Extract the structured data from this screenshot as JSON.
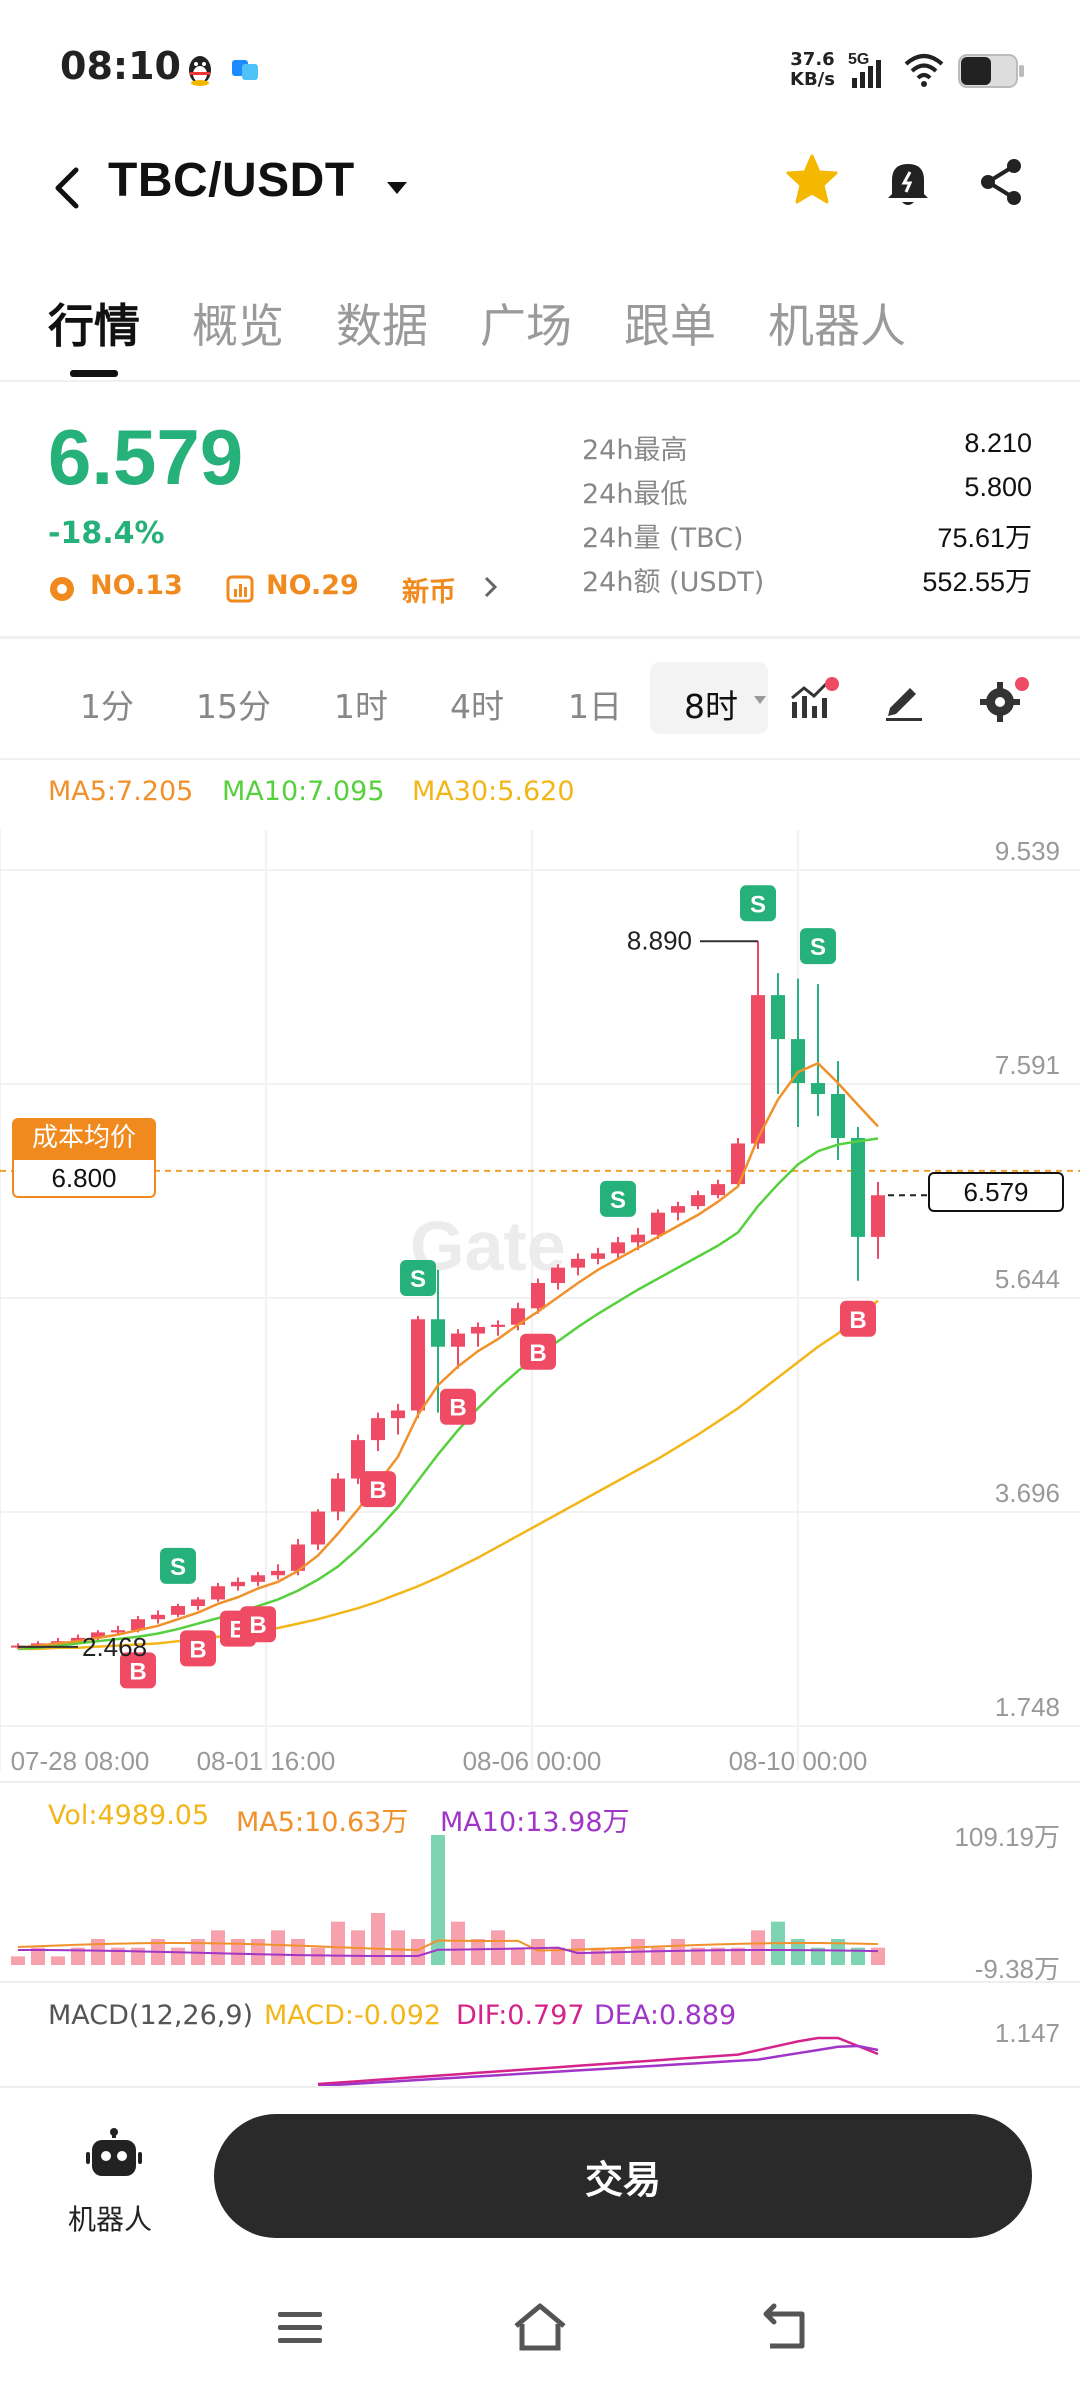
{
  "status_bar": {
    "time": "08:10",
    "net_speed_value": "37.6",
    "net_speed_unit": "KB/s",
    "network": "5G"
  },
  "header": {
    "pair": "TBC/USDT",
    "favorite_color": "#f5b800"
  },
  "tabs": [
    {
      "label": "行情",
      "active": true
    },
    {
      "label": "概览"
    },
    {
      "label": "数据"
    },
    {
      "label": "广场"
    },
    {
      "label": "跟单"
    },
    {
      "label": "机器人"
    }
  ],
  "ticker": {
    "price": "6.579",
    "change": "-18.4%",
    "rank1": "NO.13",
    "rank2": "NO.29",
    "tag": "新币",
    "stats": [
      {
        "label": "24h最高",
        "value": "8.210"
      },
      {
        "label": "24h最低",
        "value": "5.800"
      },
      {
        "label": "24h量 (TBC)",
        "value": "75.61万"
      },
      {
        "label": "24h额 (USDT)",
        "value": "552.55万"
      }
    ]
  },
  "intervals": [
    {
      "label": "1分"
    },
    {
      "label": "15分"
    },
    {
      "label": "1时"
    },
    {
      "label": "4时"
    },
    {
      "label": "1日"
    },
    {
      "label": "8时",
      "active": true
    }
  ],
  "ma_legend": {
    "ma5": "MA5:7.205",
    "ma10": "MA10:7.095",
    "ma30": "MA30:5.620"
  },
  "colors": {
    "up": "#f04b64",
    "down": "#26b07a",
    "ma5": "#f0912b",
    "ma10": "#56d13d",
    "ma30": "#f2b619",
    "macd_dif": "#d4238a",
    "macd_dea": "#a035c8"
  },
  "cost_avg": {
    "label": "成本均价",
    "value": "6.800"
  },
  "chart_data": {
    "type": "candlestick",
    "y_ticks": [
      "9.539",
      "7.591",
      "5.644",
      "3.696",
      "1.748"
    ],
    "x_ticks": [
      "07-28 08:00",
      "08-01 16:00",
      "08-06 00:00",
      "08-10 00:00"
    ],
    "ylim": [
      1.748,
      9.539
    ],
    "high_marker": "8.890",
    "low_marker": "2.468",
    "current_price": "6.579",
    "candles": [
      [
        2.47,
        2.5,
        2.45,
        2.48
      ],
      [
        2.48,
        2.52,
        2.46,
        2.5
      ],
      [
        2.5,
        2.55,
        2.48,
        2.52
      ],
      [
        2.52,
        2.58,
        2.5,
        2.55
      ],
      [
        2.55,
        2.62,
        2.52,
        2.6
      ],
      [
        2.6,
        2.66,
        2.58,
        2.62
      ],
      [
        2.62,
        2.75,
        2.6,
        2.72
      ],
      [
        2.72,
        2.8,
        2.68,
        2.76
      ],
      [
        2.76,
        2.86,
        2.74,
        2.84
      ],
      [
        2.84,
        2.92,
        2.8,
        2.9
      ],
      [
        2.9,
        3.05,
        2.88,
        3.02
      ],
      [
        3.02,
        3.1,
        2.98,
        3.06
      ],
      [
        3.06,
        3.15,
        3.02,
        3.12
      ],
      [
        3.12,
        3.22,
        3.08,
        3.16
      ],
      [
        3.16,
        3.45,
        3.12,
        3.4
      ],
      [
        3.4,
        3.72,
        3.35,
        3.7
      ],
      [
        3.7,
        4.05,
        3.62,
        4.0
      ],
      [
        4.0,
        4.4,
        3.95,
        4.35
      ],
      [
        4.35,
        4.6,
        4.25,
        4.55
      ],
      [
        4.55,
        4.68,
        4.4,
        4.62
      ],
      [
        4.62,
        5.48,
        4.55,
        5.45
      ],
      [
        5.45,
        5.9,
        4.6,
        5.2
      ],
      [
        5.2,
        5.36,
        5.0,
        5.32
      ],
      [
        5.32,
        5.42,
        5.2,
        5.38
      ],
      [
        5.38,
        5.44,
        5.3,
        5.4
      ],
      [
        5.4,
        5.6,
        5.35,
        5.55
      ],
      [
        5.55,
        5.82,
        5.5,
        5.78
      ],
      [
        5.78,
        5.95,
        5.72,
        5.92
      ],
      [
        5.92,
        6.05,
        5.85,
        6.0
      ],
      [
        6.0,
        6.1,
        5.95,
        6.05
      ],
      [
        6.05,
        6.2,
        6.0,
        6.15
      ],
      [
        6.15,
        6.28,
        6.08,
        6.22
      ],
      [
        6.22,
        6.45,
        6.18,
        6.42
      ],
      [
        6.42,
        6.52,
        6.35,
        6.48
      ],
      [
        6.48,
        6.62,
        6.45,
        6.58
      ],
      [
        6.58,
        6.72,
        6.55,
        6.68
      ],
      [
        6.68,
        7.1,
        6.65,
        7.05
      ],
      [
        7.05,
        8.89,
        7.0,
        8.4
      ],
      [
        8.4,
        8.6,
        7.5,
        8.0
      ],
      [
        8.0,
        8.55,
        7.2,
        7.6
      ],
      [
        7.6,
        8.5,
        7.3,
        7.5
      ],
      [
        7.5,
        7.8,
        6.9,
        7.1
      ],
      [
        7.1,
        7.2,
        5.8,
        6.2
      ],
      [
        6.2,
        6.7,
        6.0,
        6.579
      ]
    ],
    "ma5": [
      2.46,
      2.48,
      2.5,
      2.52,
      2.55,
      2.58,
      2.62,
      2.66,
      2.72,
      2.78,
      2.86,
      2.92,
      3.0,
      3.06,
      3.16,
      3.3,
      3.5,
      3.72,
      3.96,
      4.2,
      4.58,
      4.85,
      5.02,
      5.16,
      5.27,
      5.4,
      5.52,
      5.65,
      5.78,
      5.9,
      6.0,
      6.1,
      6.2,
      6.3,
      6.4,
      6.52,
      6.66,
      7.1,
      7.45,
      7.7,
      7.78,
      7.6,
      7.4,
      7.205
    ],
    "ma10": [
      2.45,
      2.46,
      2.48,
      2.5,
      2.52,
      2.54,
      2.56,
      2.59,
      2.63,
      2.68,
      2.73,
      2.78,
      2.84,
      2.9,
      2.98,
      3.08,
      3.2,
      3.36,
      3.54,
      3.74,
      3.98,
      4.22,
      4.44,
      4.64,
      4.82,
      4.98,
      5.12,
      5.25,
      5.38,
      5.5,
      5.61,
      5.72,
      5.82,
      5.92,
      6.02,
      6.12,
      6.24,
      6.48,
      6.68,
      6.86,
      6.98,
      7.04,
      7.07,
      7.095
    ],
    "ma30": [
      2.45,
      2.45,
      2.46,
      2.46,
      2.47,
      2.48,
      2.49,
      2.5,
      2.52,
      2.54,
      2.56,
      2.58,
      2.61,
      2.64,
      2.68,
      2.72,
      2.77,
      2.82,
      2.88,
      2.95,
      3.02,
      3.1,
      3.19,
      3.28,
      3.38,
      3.48,
      3.58,
      3.68,
      3.78,
      3.88,
      3.98,
      4.08,
      4.18,
      4.29,
      4.4,
      4.52,
      4.64,
      4.78,
      4.92,
      5.06,
      5.2,
      5.32,
      5.46,
      5.62
    ],
    "trade_markers": [
      {
        "candle": 6,
        "type": "B",
        "side": "below"
      },
      {
        "candle": 8,
        "type": "S",
        "side": "above"
      },
      {
        "candle": 9,
        "type": "B",
        "side": "below"
      },
      {
        "candle": 11,
        "type": "B",
        "side": "below"
      },
      {
        "candle": 12,
        "type": "B",
        "side": "below"
      },
      {
        "candle": 18,
        "type": "B",
        "side": "below"
      },
      {
        "candle": 20,
        "type": "S",
        "side": "above"
      },
      {
        "candle": 22,
        "type": "B",
        "side": "below"
      },
      {
        "candle": 26,
        "type": "B",
        "side": "below"
      },
      {
        "candle": 30,
        "type": "S",
        "side": "above"
      },
      {
        "candle": 37,
        "type": "S",
        "side": "above"
      },
      {
        "candle": 40,
        "type": "S",
        "side": "above"
      },
      {
        "candle": 42,
        "type": "B",
        "side": "below"
      }
    ]
  },
  "volume": {
    "vol": "Vol:4989.05",
    "ma5": "MA5:10.63万",
    "ma10": "MA10:13.98万",
    "y_top": "109.19万",
    "y_bottom": "-9.38万",
    "bars": [
      1,
      2,
      1,
      2,
      3,
      2,
      2,
      3,
      2,
      3,
      4,
      3,
      3,
      4,
      3,
      2,
      5,
      4,
      6,
      4,
      3,
      15,
      5,
      3,
      4,
      2,
      3,
      2,
      3,
      2,
      2,
      3,
      2,
      3,
      2,
      2,
      2,
      4,
      5,
      3,
      2,
      3,
      2,
      2
    ]
  },
  "macd": {
    "label": "MACD(12,26,9)",
    "macd": "MACD:-0.092",
    "dif": "DIF:0.797",
    "dea": "DEA:0.889",
    "y_top": "1.147"
  },
  "bottom_bar": {
    "robot_label": "机器人",
    "trade_label": "交易"
  }
}
